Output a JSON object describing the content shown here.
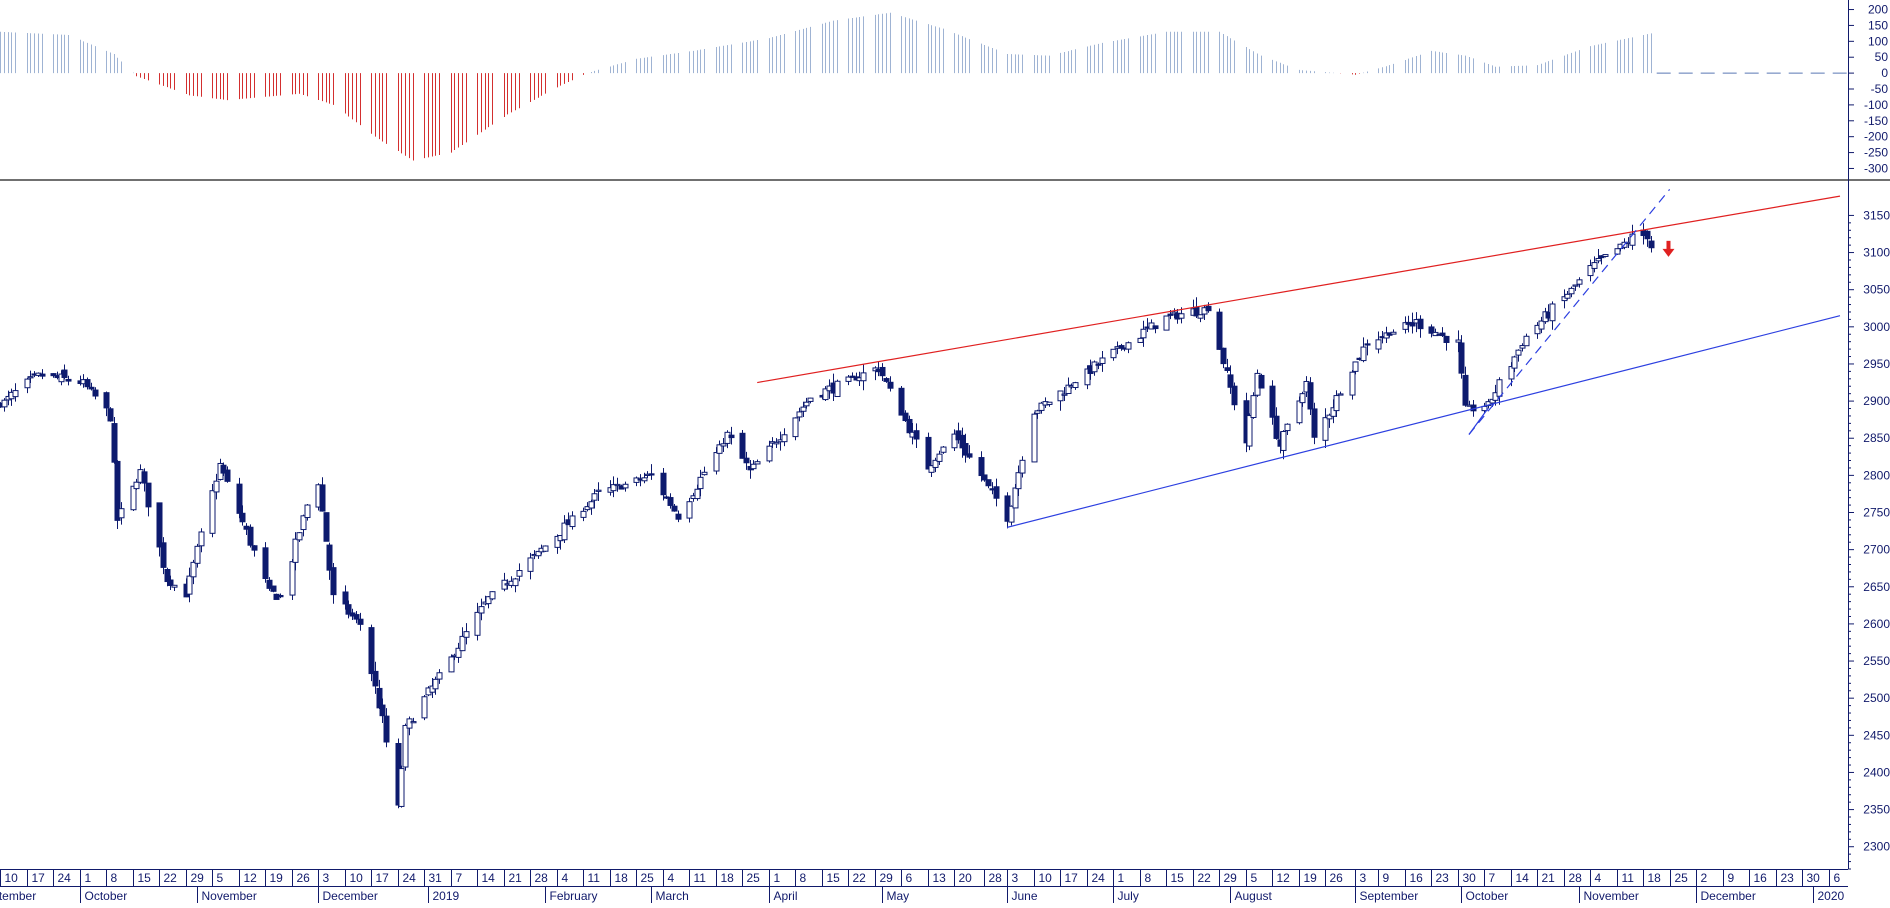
{
  "chart_data": [
    {
      "type": "bar",
      "panel": "oscillator",
      "ylim": [
        -330,
        230
      ],
      "y_ticks": [
        200,
        150,
        100,
        50,
        0,
        -50,
        -100,
        -150,
        -200,
        -250,
        -300
      ],
      "grid": false,
      "colors": {
        "positive": "#9fb3d3",
        "negative": "#d32f2f",
        "zero_line": "#5a78b5"
      },
      "anchors": [
        {
          "date": "2018-09-10",
          "value": 130
        },
        {
          "date": "2018-09-28",
          "value": 120
        },
        {
          "date": "2018-10-10",
          "value": 60
        },
        {
          "date": "2018-10-16",
          "value": -10
        },
        {
          "date": "2018-10-30",
          "value": -70
        },
        {
          "date": "2018-11-09",
          "value": -85
        },
        {
          "date": "2018-11-28",
          "value": -65
        },
        {
          "date": "2018-12-07",
          "value": -100
        },
        {
          "date": "2018-12-18",
          "value": -200
        },
        {
          "date": "2018-12-28",
          "value": -275
        },
        {
          "date": "2019-01-07",
          "value": -250
        },
        {
          "date": "2019-01-22",
          "value": -130
        },
        {
          "date": "2019-02-04",
          "value": -45
        },
        {
          "date": "2019-02-12",
          "value": 0
        },
        {
          "date": "2019-02-25",
          "value": 45
        },
        {
          "date": "2019-03-12",
          "value": 70
        },
        {
          "date": "2019-04-01",
          "value": 110
        },
        {
          "date": "2019-04-18",
          "value": 165
        },
        {
          "date": "2019-05-03",
          "value": 190
        },
        {
          "date": "2019-05-17",
          "value": 140
        },
        {
          "date": "2019-06-03",
          "value": 60
        },
        {
          "date": "2019-06-14",
          "value": 55
        },
        {
          "date": "2019-06-28",
          "value": 95
        },
        {
          "date": "2019-07-15",
          "value": 130
        },
        {
          "date": "2019-07-29",
          "value": 130
        },
        {
          "date": "2019-08-09",
          "value": 55
        },
        {
          "date": "2019-08-19",
          "value": 10
        },
        {
          "date": "2019-09-03",
          "value": -5
        },
        {
          "date": "2019-09-12",
          "value": 25
        },
        {
          "date": "2019-09-23",
          "value": 70
        },
        {
          "date": "2019-10-02",
          "value": 55
        },
        {
          "date": "2019-10-10",
          "value": 20
        },
        {
          "date": "2019-10-21",
          "value": 25
        },
        {
          "date": "2019-11-04",
          "value": 85
        },
        {
          "date": "2019-11-20",
          "value": 125
        }
      ],
      "bar_start": "2018-09-10",
      "bar_end": "2019-11-20"
    },
    {
      "type": "candlestick",
      "panel": "price",
      "ylim": [
        2270,
        3195
      ],
      "y_ticks": [
        3150,
        3100,
        3050,
        3000,
        2950,
        2900,
        2850,
        2800,
        2750,
        2700,
        2650,
        2600,
        2550,
        2500,
        2450,
        2400,
        2350,
        2300
      ],
      "grid": false,
      "x_range": [
        "2018-09-10",
        "2020-01-09"
      ],
      "colors": {
        "candle": "#0d1a6e",
        "resistance": "#e02020",
        "support": "#2c3fe0",
        "trend": "#2c3fe0",
        "signal": "#e02020"
      },
      "anchors": [
        {
          "date": "2018-09-10",
          "close": 2895
        },
        {
          "date": "2018-09-20",
          "close": 2935
        },
        {
          "date": "2018-10-02",
          "close": 2925
        },
        {
          "date": "2018-10-09",
          "close": 2880
        },
        {
          "date": "2018-10-11",
          "close": 2740
        },
        {
          "date": "2018-10-17",
          "close": 2805
        },
        {
          "date": "2018-10-24",
          "close": 2660
        },
        {
          "date": "2018-10-29",
          "close": 2640
        },
        {
          "date": "2018-11-07",
          "close": 2815
        },
        {
          "date": "2018-11-20",
          "close": 2645
        },
        {
          "date": "2018-11-23",
          "close": 2635
        },
        {
          "date": "2018-11-30",
          "close": 2760
        },
        {
          "date": "2018-12-03",
          "close": 2790
        },
        {
          "date": "2018-12-07",
          "close": 2635
        },
        {
          "date": "2018-12-14",
          "close": 2600
        },
        {
          "date": "2018-12-20",
          "close": 2470
        },
        {
          "date": "2018-12-24",
          "close": 2352
        },
        {
          "date": "2018-12-26",
          "close": 2460
        },
        {
          "date": "2019-01-04",
          "close": 2530
        },
        {
          "date": "2019-01-17",
          "close": 2635
        },
        {
          "date": "2019-02-01",
          "close": 2705
        },
        {
          "date": "2019-02-15",
          "close": 2775
        },
        {
          "date": "2019-03-01",
          "close": 2800
        },
        {
          "date": "2019-03-08",
          "close": 2745
        },
        {
          "date": "2019-03-21",
          "close": 2855
        },
        {
          "date": "2019-03-27",
          "close": 2805
        },
        {
          "date": "2019-04-12",
          "close": 2905
        },
        {
          "date": "2019-04-30",
          "close": 2945
        },
        {
          "date": "2019-05-13",
          "close": 2812
        },
        {
          "date": "2019-05-20",
          "close": 2855
        },
        {
          "date": "2019-06-03",
          "close": 2745
        },
        {
          "date": "2019-06-10",
          "close": 2885
        },
        {
          "date": "2019-07-01",
          "close": 2965
        },
        {
          "date": "2019-07-15",
          "close": 3013
        },
        {
          "date": "2019-07-26",
          "close": 3025
        },
        {
          "date": "2019-08-05",
          "close": 2845
        },
        {
          "date": "2019-08-08",
          "close": 2938
        },
        {
          "date": "2019-08-14",
          "close": 2840
        },
        {
          "date": "2019-08-21",
          "close": 2925
        },
        {
          "date": "2019-08-23",
          "close": 2848
        },
        {
          "date": "2019-09-06",
          "close": 2980
        },
        {
          "date": "2019-09-19",
          "close": 3006
        },
        {
          "date": "2019-09-30",
          "close": 2977
        },
        {
          "date": "2019-10-02",
          "close": 2887
        },
        {
          "date": "2019-10-08",
          "close": 2895
        },
        {
          "date": "2019-10-18",
          "close": 2987
        },
        {
          "date": "2019-10-28",
          "close": 3039
        },
        {
          "date": "2019-11-04",
          "close": 3078
        },
        {
          "date": "2019-11-15",
          "close": 3120
        },
        {
          "date": "2019-11-19",
          "close": 3124
        },
        {
          "date": "2019-11-20",
          "close": 3108
        }
      ],
      "lines": [
        {
          "name": "resistance",
          "from": {
            "date": "2019-03-29",
            "value": 2925
          },
          "to": {
            "date": "2020-01-09",
            "value": 3176
          },
          "dashed": false
        },
        {
          "name": "support",
          "from": {
            "date": "2019-06-03",
            "value": 2730
          },
          "to": {
            "date": "2020-01-09",
            "value": 3015
          },
          "dashed": false
        },
        {
          "name": "short-term-trend",
          "from": {
            "date": "2019-10-03",
            "value": 2855
          },
          "to": {
            "date": "2019-11-25",
            "value": 3185
          },
          "dashed": true
        },
        {
          "name": "trend-stub",
          "from": {
            "date": "2019-10-03",
            "value": 2855
          },
          "to": {
            "date": "2019-10-08",
            "value": 2890
          },
          "dashed": false
        }
      ],
      "signal": {
        "date": "2019-11-21",
        "direction": "down"
      }
    }
  ],
  "x_axis": {
    "day_ticks": [
      {
        "date": "2018-09-10",
        "label": "10"
      },
      {
        "date": "2018-09-17",
        "label": "17"
      },
      {
        "date": "2018-09-24",
        "label": "24"
      },
      {
        "date": "2018-10-01",
        "label": "1"
      },
      {
        "date": "2018-10-08",
        "label": "8"
      },
      {
        "date": "2018-10-15",
        "label": "15"
      },
      {
        "date": "2018-10-22",
        "label": "22"
      },
      {
        "date": "2018-10-29",
        "label": "29"
      },
      {
        "date": "2018-11-05",
        "label": "5"
      },
      {
        "date": "2018-11-12",
        "label": "12"
      },
      {
        "date": "2018-11-19",
        "label": "19"
      },
      {
        "date": "2018-11-26",
        "label": "26"
      },
      {
        "date": "2018-12-03",
        "label": "3"
      },
      {
        "date": "2018-12-10",
        "label": "10"
      },
      {
        "date": "2018-12-17",
        "label": "17"
      },
      {
        "date": "2018-12-24",
        "label": "24"
      },
      {
        "date": "2018-12-31",
        "label": "31"
      },
      {
        "date": "2019-01-07",
        "label": "7"
      },
      {
        "date": "2019-01-14",
        "label": "14"
      },
      {
        "date": "2019-01-21",
        "label": "21"
      },
      {
        "date": "2019-01-28",
        "label": "28"
      },
      {
        "date": "2019-02-04",
        "label": "4"
      },
      {
        "date": "2019-02-11",
        "label": "11"
      },
      {
        "date": "2019-02-18",
        "label": "18"
      },
      {
        "date": "2019-02-25",
        "label": "25"
      },
      {
        "date": "2019-03-04",
        "label": "4"
      },
      {
        "date": "2019-03-11",
        "label": "11"
      },
      {
        "date": "2019-03-18",
        "label": "18"
      },
      {
        "date": "2019-03-25",
        "label": "25"
      },
      {
        "date": "2019-04-01",
        "label": "1"
      },
      {
        "date": "2019-04-08",
        "label": "8"
      },
      {
        "date": "2019-04-15",
        "label": "15"
      },
      {
        "date": "2019-04-22",
        "label": "22"
      },
      {
        "date": "2019-04-29",
        "label": "29"
      },
      {
        "date": "2019-05-06",
        "label": "6"
      },
      {
        "date": "2019-05-13",
        "label": "13"
      },
      {
        "date": "2019-05-20",
        "label": "20"
      },
      {
        "date": "2019-05-28",
        "label": "28"
      },
      {
        "date": "2019-06-03",
        "label": "3"
      },
      {
        "date": "2019-06-10",
        "label": "10"
      },
      {
        "date": "2019-06-17",
        "label": "17"
      },
      {
        "date": "2019-06-24",
        "label": "24"
      },
      {
        "date": "2019-07-01",
        "label": "1"
      },
      {
        "date": "2019-07-08",
        "label": "8"
      },
      {
        "date": "2019-07-15",
        "label": "15"
      },
      {
        "date": "2019-07-22",
        "label": "22"
      },
      {
        "date": "2019-07-29",
        "label": "29"
      },
      {
        "date": "2019-08-05",
        "label": "5"
      },
      {
        "date": "2019-08-12",
        "label": "12"
      },
      {
        "date": "2019-08-19",
        "label": "19"
      },
      {
        "date": "2019-08-26",
        "label": "26"
      },
      {
        "date": "2019-09-03",
        "label": "3"
      },
      {
        "date": "2019-09-09",
        "label": "9"
      },
      {
        "date": "2019-09-16",
        "label": "16"
      },
      {
        "date": "2019-09-23",
        "label": "23"
      },
      {
        "date": "2019-09-30",
        "label": "30"
      },
      {
        "date": "2019-10-07",
        "label": "7"
      },
      {
        "date": "2019-10-14",
        "label": "14"
      },
      {
        "date": "2019-10-21",
        "label": "21"
      },
      {
        "date": "2019-10-28",
        "label": "28"
      },
      {
        "date": "2019-11-04",
        "label": "4"
      },
      {
        "date": "2019-11-11",
        "label": "11"
      },
      {
        "date": "2019-11-18",
        "label": "18"
      },
      {
        "date": "2019-11-25",
        "label": "25"
      },
      {
        "date": "2019-12-02",
        "label": "2"
      },
      {
        "date": "2019-12-09",
        "label": "9"
      },
      {
        "date": "2019-12-16",
        "label": "16"
      },
      {
        "date": "2019-12-23",
        "label": "23"
      },
      {
        "date": "2019-12-30",
        "label": "30"
      },
      {
        "date": "2020-01-06",
        "label": "6"
      }
    ],
    "month_labels": [
      {
        "date": "2018-09-03",
        "label": "September"
      },
      {
        "date": "2018-10-01",
        "label": "October"
      },
      {
        "date": "2018-11-01",
        "label": "November"
      },
      {
        "date": "2018-12-03",
        "label": "December"
      },
      {
        "date": "2019-01-01",
        "label": "2019"
      },
      {
        "date": "2019-02-01",
        "label": "February"
      },
      {
        "date": "2019-03-01",
        "label": "March"
      },
      {
        "date": "2019-04-01",
        "label": "April"
      },
      {
        "date": "2019-05-01",
        "label": "May"
      },
      {
        "date": "2019-06-03",
        "label": "June"
      },
      {
        "date": "2019-07-01",
        "label": "July"
      },
      {
        "date": "2019-08-01",
        "label": "August"
      },
      {
        "date": "2019-09-03",
        "label": "September"
      },
      {
        "date": "2019-10-01",
        "label": "October"
      },
      {
        "date": "2019-11-01",
        "label": "November"
      },
      {
        "date": "2019-12-02",
        "label": "December"
      },
      {
        "date": "2020-01-02",
        "label": "2020"
      }
    ]
  }
}
